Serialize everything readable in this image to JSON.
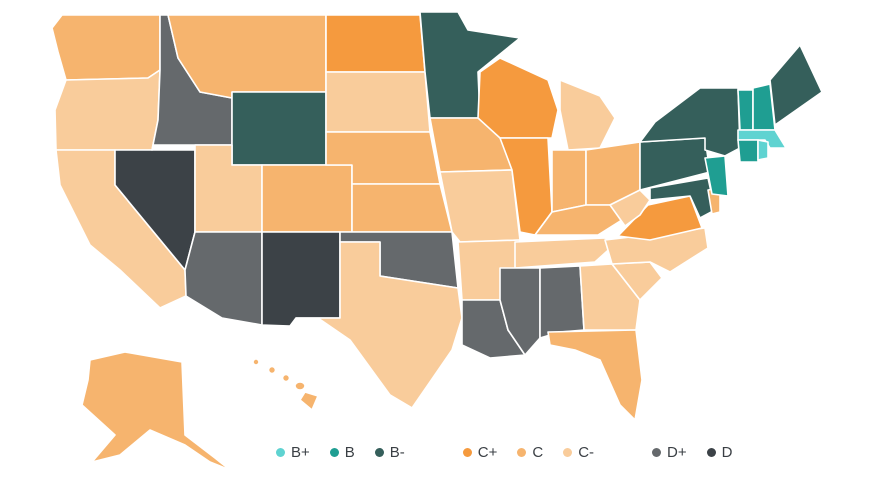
{
  "colors": {
    "B+": "#5fd3d1",
    "B": "#1f9e92",
    "B-": "#355f5b",
    "C+": "#f59a3e",
    "C": "#f6b46e",
    "C-": "#f9cc9b",
    "D+": "#65696c",
    "D": "#3c4247"
  },
  "legend": [
    {
      "grade": "B+",
      "label": "B+"
    },
    {
      "grade": "B",
      "label": "B"
    },
    {
      "grade": "B-",
      "label": "B-"
    },
    {
      "grade": "C+",
      "label": "C+"
    },
    {
      "grade": "C",
      "label": "C"
    },
    {
      "grade": "C-",
      "label": "C-"
    },
    {
      "grade": "D+",
      "label": "D+"
    },
    {
      "grade": "D",
      "label": "D"
    }
  ],
  "state_grades": {
    "WA": "C",
    "OR": "C-",
    "CA": "C-",
    "ID": "D+",
    "NV": "D",
    "MT": "C",
    "WY": "B-",
    "UT": "C-",
    "AZ": "D+",
    "CO": "C",
    "NM": "D",
    "ND": "C+",
    "SD": "C-",
    "NE": "C",
    "KS": "C",
    "OK": "D+",
    "TX": "C-",
    "MN": "B-",
    "IA": "C",
    "MO": "C-",
    "AR": "C-",
    "LA": "D+",
    "WI": "C+",
    "IL": "C+",
    "MI": "C-",
    "IN": "C",
    "OH": "C",
    "KY": "C",
    "TN": "C-",
    "MS": "D+",
    "AL": "D+",
    "GA": "C-",
    "FL": "C",
    "SC": "C-",
    "NC": "C-",
    "VA": "C+",
    "WV": "C-",
    "MD": "B-",
    "DE": "C",
    "PA": "B-",
    "NJ": "B",
    "NY": "B-",
    "CT": "B",
    "RI": "B+",
    "MA": "B+",
    "VT": "B",
    "NH": "B",
    "ME": "B-",
    "AK": "C",
    "HI": "C"
  }
}
